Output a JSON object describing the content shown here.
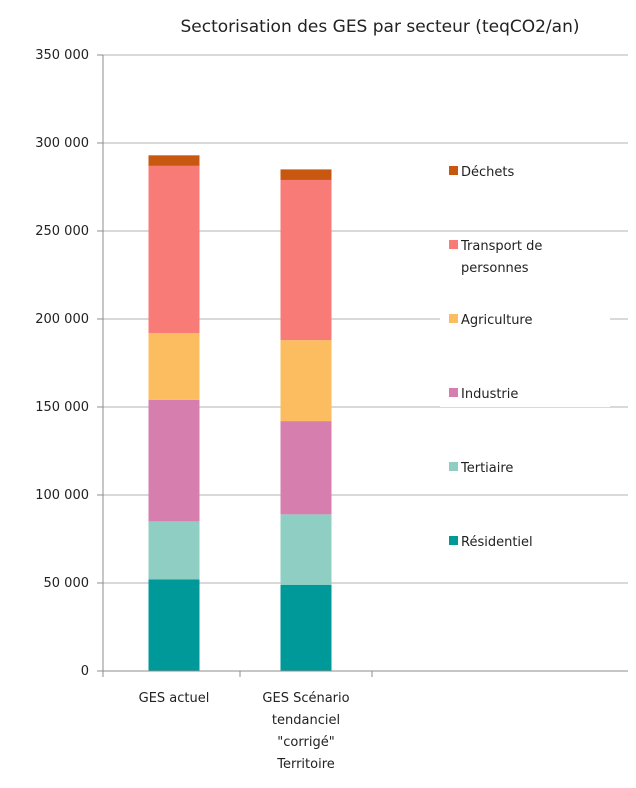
{
  "chart_data": {
    "type": "bar",
    "stacked": true,
    "title": "Sectorisation des GES par secteur (teqCO2/an)",
    "xlabel": "",
    "ylabel": "",
    "ylim": [
      0,
      350000
    ],
    "yticks": [
      0,
      50000,
      100000,
      150000,
      200000,
      250000,
      300000,
      350000
    ],
    "ytick_labels": [
      "0",
      "50 000",
      "100 000",
      "150 000",
      "200 000",
      "250 000",
      "300 000",
      "350 000"
    ],
    "grid": true,
    "legend_position": "right",
    "categories": [
      [
        "GES actuel"
      ],
      [
        "GES Scénario",
        "tendanciel",
        "\"corrigé\"",
        "Territoire"
      ]
    ],
    "series": [
      {
        "name": "Résidentiel",
        "color": "#009999",
        "values": [
          52000,
          49000
        ]
      },
      {
        "name": "Tertiaire",
        "color": "#8fcfc3",
        "values": [
          33000,
          40000
        ]
      },
      {
        "name": "Industrie",
        "color": "#d67fae",
        "values": [
          69000,
          53000
        ]
      },
      {
        "name": "Agriculture",
        "color": "#fbbd60",
        "values": [
          38000,
          46000
        ]
      },
      {
        "name": "Transport de personnes",
        "legend_lines": [
          "Transport de",
          "personnes"
        ],
        "color": "#f97b77",
        "values": [
          95000,
          91000
        ]
      },
      {
        "name": "Déchets",
        "color": "#c8580f",
        "values": [
          6000,
          6000
        ]
      }
    ]
  }
}
